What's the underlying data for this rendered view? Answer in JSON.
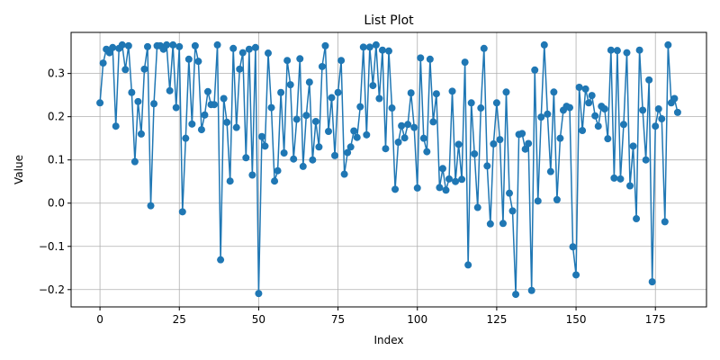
{
  "chart_data": {
    "type": "line",
    "title": "List Plot",
    "xlabel": "Index",
    "ylabel": "Value",
    "xlim": [
      -9.1,
      191.1
    ],
    "ylim": [
      -0.24,
      0.395
    ],
    "xticks": [
      0,
      25,
      50,
      75,
      100,
      125,
      150,
      175
    ],
    "yticks": [
      -0.2,
      -0.1,
      0.0,
      0.1,
      0.2,
      0.3
    ],
    "ytick_labels": [
      "−0.2",
      "−0.1",
      "0.0",
      "0.1",
      "0.2",
      "0.3"
    ],
    "grid": true,
    "color": "#1f77b4",
    "marker": "circle",
    "values": [
      0.232,
      0.324,
      0.356,
      0.348,
      0.36,
      0.178,
      0.358,
      0.366,
      0.309,
      0.364,
      0.256,
      0.096,
      0.235,
      0.16,
      0.31,
      0.362,
      -0.006,
      0.23,
      0.364,
      0.364,
      0.356,
      0.366,
      0.26,
      0.366,
      0.221,
      0.362,
      -0.02,
      0.15,
      0.333,
      0.183,
      0.364,
      0.328,
      0.17,
      0.204,
      0.258,
      0.228,
      0.228,
      0.366,
      -0.131,
      0.242,
      0.187,
      0.051,
      0.358,
      0.175,
      0.31,
      0.348,
      0.105,
      0.356,
      0.065,
      0.36,
      -0.209,
      0.154,
      0.132,
      0.347,
      0.221,
      0.051,
      0.075,
      0.256,
      0.116,
      0.33,
      0.274,
      0.102,
      0.194,
      0.334,
      0.085,
      0.203,
      0.28,
      0.1,
      0.189,
      0.13,
      0.316,
      0.364,
      0.166,
      0.244,
      0.11,
      0.256,
      0.33,
      0.067,
      0.117,
      0.13,
      0.167,
      0.152,
      0.223,
      0.361,
      0.158,
      0.361,
      0.272,
      0.366,
      0.242,
      0.354,
      0.126,
      0.352,
      0.22,
      0.032,
      0.141,
      0.179,
      0.151,
      0.182,
      0.255,
      0.175,
      0.035,
      0.336,
      0.15,
      0.119,
      0.333,
      0.188,
      0.253,
      0.036,
      0.08,
      0.03,
      0.056,
      0.259,
      0.05,
      0.136,
      0.055,
      0.326,
      -0.143,
      0.232,
      0.114,
      -0.01,
      0.22,
      0.358,
      0.086,
      -0.048,
      0.137,
      0.232,
      0.147,
      -0.047,
      0.257,
      0.023,
      -0.018,
      -0.211,
      0.159,
      0.161,
      0.125,
      0.138,
      -0.202,
      0.308,
      0.005,
      0.199,
      0.366,
      0.206,
      0.073,
      0.257,
      0.008,
      0.15,
      0.215,
      0.224,
      0.221,
      -0.101,
      -0.166,
      0.268,
      0.168,
      0.264,
      0.232,
      0.249,
      0.202,
      0.178,
      0.224,
      0.218,
      0.149,
      0.354,
      0.058,
      0.353,
      0.056,
      0.182,
      0.348,
      0.04,
      0.132,
      -0.036,
      0.354,
      0.215,
      0.1,
      0.285,
      -0.182,
      0.178,
      0.218,
      0.195,
      -0.043,
      0.366,
      0.232,
      0.242,
      0.21
    ]
  }
}
